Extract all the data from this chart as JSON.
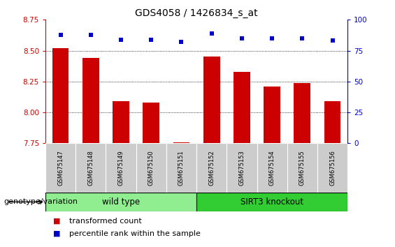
{
  "title": "GDS4058 / 1426834_s_at",
  "samples": [
    "GSM675147",
    "GSM675148",
    "GSM675149",
    "GSM675150",
    "GSM675151",
    "GSM675152",
    "GSM675153",
    "GSM675154",
    "GSM675155",
    "GSM675156"
  ],
  "transformed_count": [
    8.52,
    8.44,
    8.09,
    8.08,
    7.76,
    8.45,
    8.33,
    8.21,
    8.24,
    8.09
  ],
  "percentile_rank": [
    88,
    88,
    84,
    84,
    82,
    89,
    85,
    85,
    85,
    83
  ],
  "ylim_left": [
    7.75,
    8.75
  ],
  "ylim_right": [
    0,
    100
  ],
  "yticks_left": [
    7.75,
    8.0,
    8.25,
    8.5,
    8.75
  ],
  "yticks_right": [
    0,
    25,
    50,
    75,
    100
  ],
  "bar_color": "#CC0000",
  "dot_color": "#0000CC",
  "wild_type_label": "wild type",
  "knockout_label": "SIRT3 knockout",
  "wild_type_color": "#90EE90",
  "knockout_color": "#32CD32",
  "genotype_label": "genotype/variation",
  "legend_bar_label": "transformed count",
  "legend_dot_label": "percentile rank within the sample",
  "tick_label_color_left": "#CC0000",
  "tick_label_color_right": "#0000CC",
  "title_fontsize": 10,
  "tick_fontsize": 7.5,
  "sample_fontsize": 6.0,
  "legend_fontsize": 8.0,
  "genotype_fontsize": 8.0
}
